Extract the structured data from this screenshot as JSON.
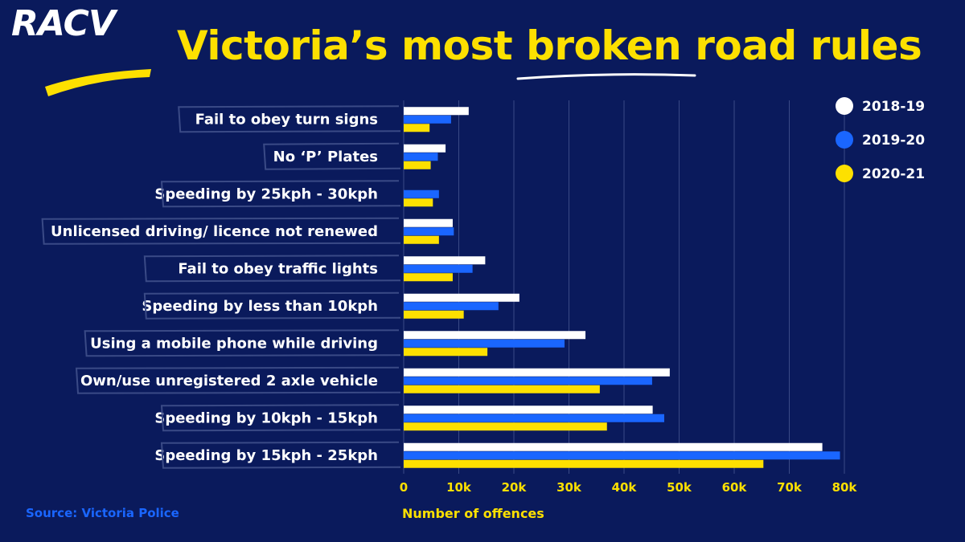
{
  "logo": {
    "text": "RACV"
  },
  "title": "Victoria’s most broken road rules",
  "source": "Source: Victoria Police",
  "colors": {
    "background": "#0a1a5c",
    "accent": "#fde000",
    "series_2018": "#ffffff",
    "series_2019": "#1a66ff",
    "series_2020": "#fde000"
  },
  "chart_data": {
    "type": "bar",
    "orientation": "horizontal",
    "title": "Victoria’s most broken road rules",
    "xlabel": "Number of offences",
    "ylabel": "",
    "xlim": [
      0,
      80000
    ],
    "xticks": [
      0,
      10000,
      20000,
      30000,
      40000,
      50000,
      60000,
      70000,
      80000
    ],
    "xtick_labels": [
      "0",
      "10k",
      "20k",
      "30k",
      "40k",
      "50k",
      "60k",
      "70k",
      "80k"
    ],
    "grid": true,
    "legend_position": "top-right",
    "categories": [
      "Fail to obey turn signs",
      "No ‘P’ Plates",
      "Speeding by 25kph - 30kph",
      "Unlicensed driving/ licence not renewed",
      "Fail to obey traffic lights",
      "Speeding by less than 10kph",
      "Using a mobile phone while driving",
      "Own/use unregistered 2 axle vehicle",
      "Speeding by 10kph - 15kph",
      "Speeding by 15kph - 25kph"
    ],
    "series": [
      {
        "name": "2018-19",
        "color": "#ffffff",
        "values": [
          11800,
          7600,
          0,
          8900,
          14800,
          21000,
          33000,
          48300,
          45200,
          76000
        ]
      },
      {
        "name": "2019-20",
        "color": "#1a66ff",
        "values": [
          8600,
          6200,
          6400,
          9100,
          12500,
          17200,
          29200,
          45100,
          47300,
          79200
        ]
      },
      {
        "name": "2020-21",
        "color": "#fde000",
        "values": [
          4700,
          4900,
          5300,
          6400,
          8900,
          10900,
          15200,
          35600,
          36900,
          65300
        ]
      }
    ]
  }
}
